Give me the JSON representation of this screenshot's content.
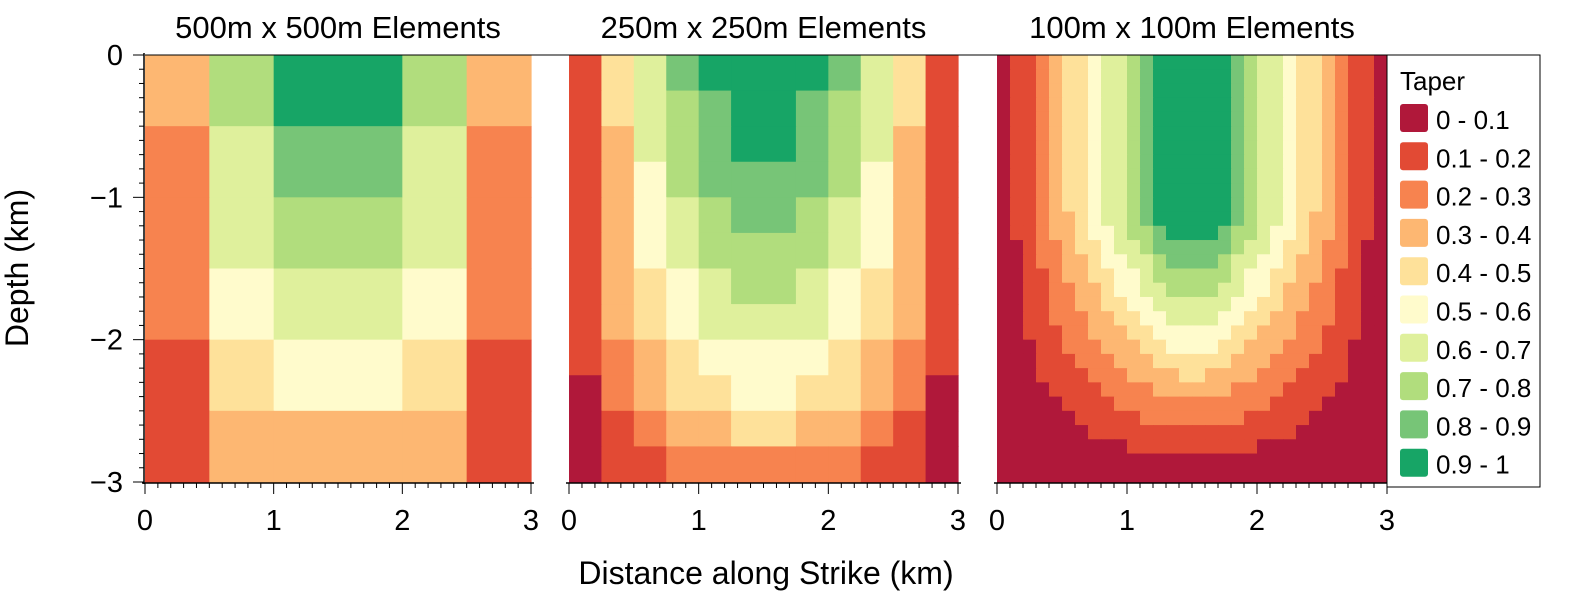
{
  "figure": {
    "ylabel": "Depth (km)",
    "xlabel": "Distance along Strike (km)"
  },
  "legend": {
    "title": "Taper",
    "items": [
      {
        "label": "0 - 0.1",
        "color": "#b0183a"
      },
      {
        "label": "0.1 - 0.2",
        "color": "#e24a34"
      },
      {
        "label": "0.2 - 0.3",
        "color": "#f7834f"
      },
      {
        "label": "0.3 - 0.4",
        "color": "#fdb772"
      },
      {
        "label": "0.4 - 0.5",
        "color": "#fee19a"
      },
      {
        "label": "0.5 - 0.6",
        "color": "#fffbcc"
      },
      {
        "label": "0.6 - 0.7",
        "color": "#dff09c"
      },
      {
        "label": "0.7 - 0.8",
        "color": "#b1dd7d"
      },
      {
        "label": "0.8 - 0.9",
        "color": "#77c577"
      },
      {
        "label": "0.9 - 1",
        "color": "#17a566"
      }
    ]
  },
  "chart_data": [
    {
      "type": "heatmap",
      "title": "500m x 500m Elements",
      "xlim": [
        0,
        3
      ],
      "ylim": [
        -3,
        0
      ],
      "xticks": [
        "0",
        "1",
        "2",
        "3"
      ],
      "yticks": [
        "0",
        "−1",
        "−2",
        "−3"
      ],
      "x_edges": [
        0,
        0.5,
        1,
        2,
        2.5,
        3
      ],
      "y_edges": [
        0,
        -0.5,
        -1,
        -1.5,
        -2,
        -2.5,
        -3
      ],
      "cell_class": [
        [
          3,
          7,
          9,
          7,
          3
        ],
        [
          2,
          6,
          8,
          6,
          2
        ],
        [
          2,
          6,
          7,
          6,
          2
        ],
        [
          2,
          5,
          6,
          5,
          2
        ],
        [
          1,
          4,
          5,
          4,
          1
        ],
        [
          1,
          3,
          3,
          3,
          1
        ]
      ]
    },
    {
      "type": "heatmap",
      "title": "250m x 250m Elements",
      "xlim": [
        0,
        3
      ],
      "ylim": [
        -3,
        0
      ],
      "xticks": [
        "0",
        "1",
        "2",
        "3"
      ],
      "yticks": [],
      "x_edges": [
        0,
        0.25,
        0.5,
        0.75,
        1,
        1.25,
        1.75,
        2,
        2.25,
        2.5,
        2.75,
        3
      ],
      "y_edges": [
        0,
        -0.25,
        -0.5,
        -0.75,
        -1,
        -1.25,
        -1.5,
        -1.75,
        -2,
        -2.25,
        -2.5,
        -2.75,
        -3
      ],
      "cell_class": [
        [
          1,
          4,
          6,
          8,
          9,
          9,
          9,
          8,
          6,
          4,
          1
        ],
        [
          1,
          4,
          6,
          7,
          8,
          9,
          8,
          7,
          6,
          4,
          1
        ],
        [
          1,
          3,
          6,
          7,
          8,
          9,
          8,
          7,
          6,
          3,
          1
        ],
        [
          1,
          3,
          5,
          7,
          8,
          8,
          8,
          7,
          5,
          3,
          1
        ],
        [
          1,
          3,
          5,
          6,
          7,
          8,
          7,
          6,
          5,
          3,
          1
        ],
        [
          1,
          3,
          5,
          6,
          7,
          7,
          7,
          6,
          5,
          3,
          1
        ],
        [
          1,
          3,
          4,
          5,
          6,
          7,
          6,
          5,
          4,
          3,
          1
        ],
        [
          1,
          3,
          4,
          5,
          6,
          6,
          6,
          5,
          4,
          3,
          1
        ],
        [
          1,
          2,
          3,
          4,
          5,
          5,
          5,
          4,
          3,
          2,
          1
        ],
        [
          0,
          2,
          3,
          4,
          4,
          5,
          4,
          4,
          3,
          2,
          0
        ],
        [
          0,
          1,
          2,
          3,
          3,
          4,
          3,
          3,
          2,
          1,
          0
        ],
        [
          0,
          1,
          1,
          2,
          2,
          2,
          2,
          2,
          1,
          1,
          0
        ]
      ]
    },
    {
      "type": "heatmap",
      "title": "100m x 100m Elements",
      "xlim": [
        0,
        3
      ],
      "ylim": [
        -3,
        0
      ],
      "xticks": [
        "0",
        "1",
        "2",
        "3"
      ],
      "yticks": [],
      "cols": 30,
      "rows": 30,
      "band_model": "concentric taper bands from edges (0 - 0.1 at sides and bottom) to 0.9 - 1 at top centre"
    }
  ]
}
